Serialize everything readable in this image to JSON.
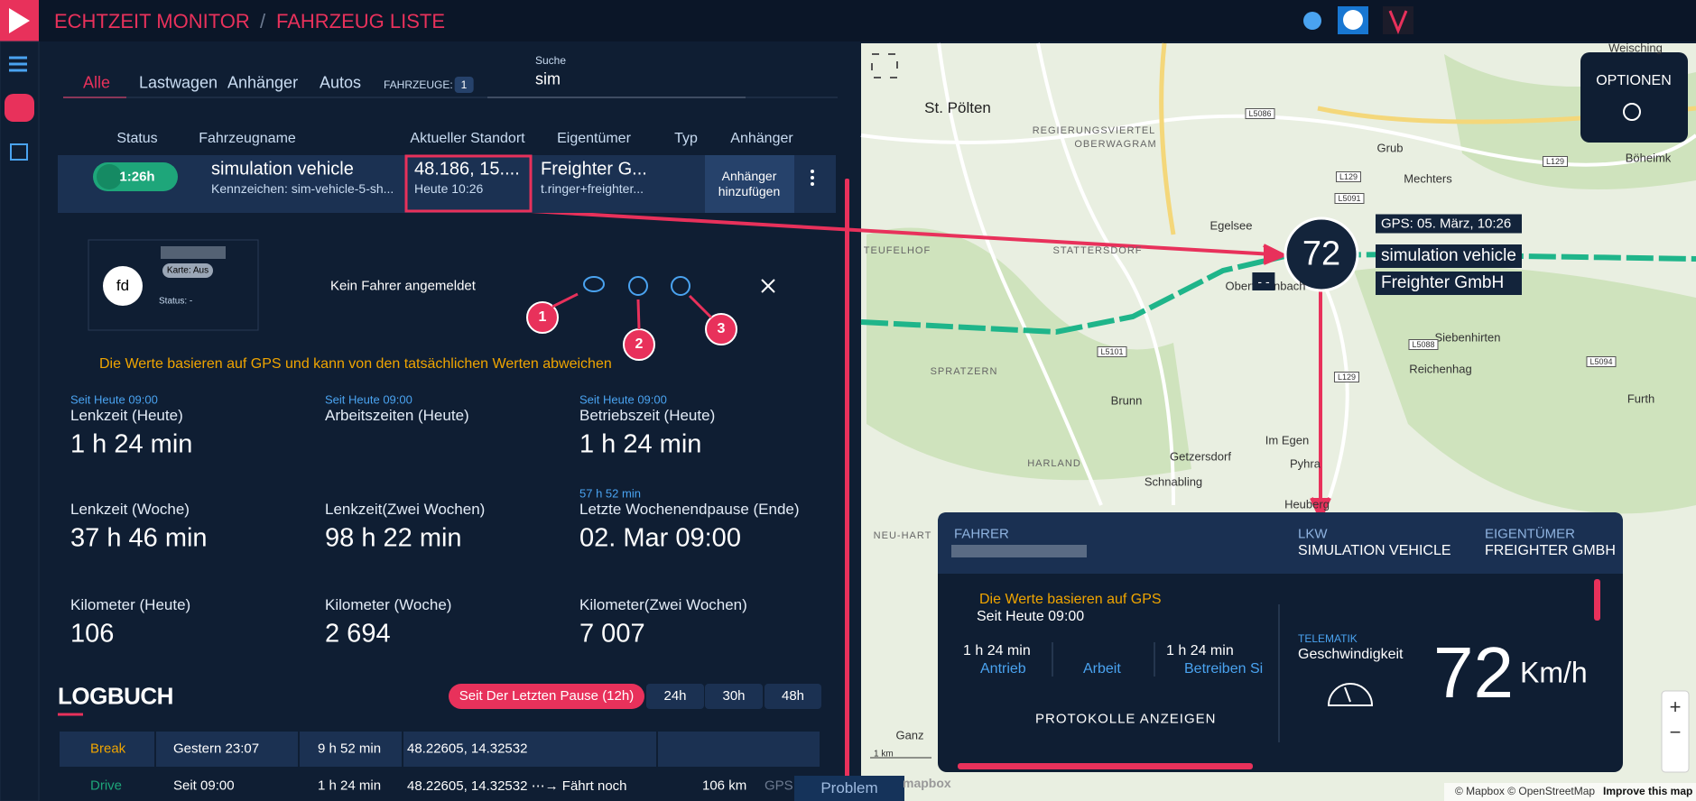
{
  "header": {
    "brand": "ECHTZEIT MONITOR",
    "separator": "/",
    "page": "FAHRZEUG LISTE"
  },
  "tabs": {
    "items": [
      "Alle",
      "Lastwagen",
      "Anhänger",
      "Autos"
    ],
    "count_label": "FAHRZEUGE:",
    "count": "1"
  },
  "search": {
    "label": "Suche",
    "value": "sim"
  },
  "table": {
    "headers": [
      "Status",
      "Fahrzeugname",
      "Aktueller Standort",
      "Eigentümer",
      "Typ",
      "Anhänger"
    ],
    "row": {
      "status": "1:26h",
      "name": "simulation vehicle",
      "plate": "Kennzeichen: sim-vehicle-5-sh...",
      "location": "48.186, 15....",
      "location_time": "Heute 10:26",
      "owner": "Freighter G...",
      "owner_email": "t.ringer+freighter...",
      "trailer": "Anhänger hinzufügen"
    }
  },
  "driver": {
    "initials": "fd",
    "card": "Karte: Aus",
    "status": "Status: -",
    "message": "Kein Fahrer angemeldet"
  },
  "callouts": [
    "1",
    "2",
    "3"
  ],
  "warning": "Die Werte basieren auf GPS und kann von den tatsächlichen Werten abweichen",
  "stats": [
    {
      "note": "Seit Heute 09:00",
      "label": "Lenkzeit (Heute)",
      "value": "1 h 24 min"
    },
    {
      "note": "Seit Heute 09:00",
      "label": "Arbeitszeiten (Heute)"
    },
    {
      "note": "Seit Heute 09:00",
      "label": "Betriebszeit (Heute)",
      "value": "1 h 24 min"
    },
    {
      "label": "Lenkzeit (Woche)",
      "value": "37 h 46 min"
    },
    {
      "label": "Lenkzeit(Zwei Wochen)",
      "value": "98 h 22 min"
    },
    {
      "note": "57 h 52 min",
      "label": "Letzte Wochenendpause (Ende)",
      "value": "02. Mar 09:00"
    },
    {
      "label": "Kilometer (Heute)",
      "value": "106"
    },
    {
      "label": "Kilometer (Woche)",
      "value": "2 694"
    },
    {
      "label": "Kilometer(Zwei Wochen)",
      "value": "7 007"
    }
  ],
  "logbook": {
    "title": "LOGBUCH",
    "filters": [
      "Seit Der Letzten Pause (12h)",
      "24h",
      "30h",
      "48h"
    ],
    "rows": [
      {
        "type": "Break",
        "start": "Gestern 23:07",
        "duration": "9 h 52 min",
        "location": "48.22605, 14.32532"
      },
      {
        "type": "Drive",
        "start": "Seit 09:00",
        "duration": "1 h 24 min",
        "location": "48.22605, 14.32532 ⋯→ Fährt noch",
        "distance": "106 km",
        "source": "GPS"
      }
    ]
  },
  "problem": "Problem",
  "map": {
    "places": [
      "St. Pölten",
      "REGIERUNGSVIERTEL",
      "OBERWAGRAM",
      "Grub",
      "Mechters",
      "Böheimk",
      "Weisching",
      "Egelsee",
      "STATTERSDORF",
      "TEUFELHOF",
      "Obertiefenbach",
      "SPRATZERN",
      "Siebenhirten",
      "Reichenhag",
      "Furth",
      "Brunn",
      "Im Egen",
      "HARLAND",
      "Getzersdorf",
      "Pyhra",
      "Schnabling",
      "Heuberg",
      "NEU-HART",
      "Ganz"
    ],
    "roads": [
      "L5086",
      "L129",
      "L5091",
      "L129",
      "L5101",
      "L5088",
      "L5094",
      "L129"
    ],
    "marker": {
      "speed": "72",
      "gps": "GPS: 05. März, 10:26",
      "name": "simulation vehicle",
      "owner": "Freighter GmbH",
      "extra": "- -"
    },
    "options": "OPTIONEN",
    "scale": "1 km",
    "logo": "mapbox",
    "attribution": "© Mapbox © OpenStreetMap",
    "improve": "Improve this map",
    "zoom_in": "+",
    "zoom_out": "−"
  },
  "panel": {
    "driver_label": "FAHRER",
    "truck_label": "LKW",
    "truck": "SIMULATION VEHICLE",
    "owner_label": "EIGENTÜMER",
    "owner": "FREIGHTER GMBH",
    "warning": "Die Werte basieren auf GPS",
    "since": "Seit Heute 09:00",
    "metrics": [
      {
        "value": "1 h 24 min",
        "label": "Antrieb"
      },
      {
        "label": "Arbeit"
      },
      {
        "value": "1 h 24 min",
        "label": "Betreiben Si"
      }
    ],
    "logs": "PROTOKOLLE ANZEIGEN",
    "telematics": "TELEMATIK",
    "speed_label": "Geschwindigkeit",
    "speed": "72",
    "unit": "Km/h"
  }
}
